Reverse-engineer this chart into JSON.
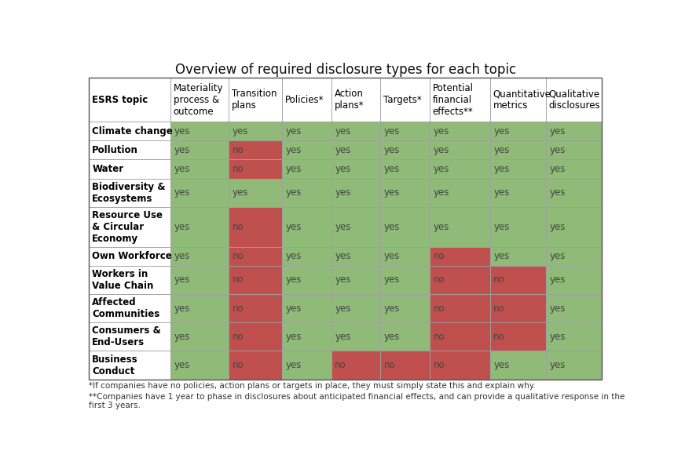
{
  "title": "Overview of required disclosure types for each topic",
  "col_headers": [
    "ESRS topic",
    "Materiality\nprocess &\noutcome",
    "Transition\nplans",
    "Policies*",
    "Action\nplans*",
    "Targets*",
    "Potential\nfinancial\neffects**",
    "Quantitative\nmetrics",
    "Qualitative\ndisclosures"
  ],
  "row_labels": [
    "Climate change",
    "Pollution",
    "Water",
    "Biodiversity &\nEcosystems",
    "Resource Use\n& Circular\nEconomy",
    "Own Workforce",
    "Workers in\nValue Chain",
    "Affected\nCommunities",
    "Consumers &\nEnd-Users",
    "Business\nConduct"
  ],
  "cell_values": [
    [
      "yes",
      "yes",
      "yes",
      "yes",
      "yes",
      "yes",
      "yes",
      "yes"
    ],
    [
      "yes",
      "no",
      "yes",
      "yes",
      "yes",
      "yes",
      "yes",
      "yes"
    ],
    [
      "yes",
      "no",
      "yes",
      "yes",
      "yes",
      "yes",
      "yes",
      "yes"
    ],
    [
      "yes",
      "yes",
      "yes",
      "yes",
      "yes",
      "yes",
      "yes",
      "yes"
    ],
    [
      "yes",
      "no",
      "yes",
      "yes",
      "yes",
      "yes",
      "yes",
      "yes"
    ],
    [
      "yes",
      "no",
      "yes",
      "yes",
      "yes",
      "no",
      "yes",
      "yes"
    ],
    [
      "yes",
      "no",
      "yes",
      "yes",
      "yes",
      "no",
      "no",
      "yes"
    ],
    [
      "yes",
      "no",
      "yes",
      "yes",
      "yes",
      "no",
      "no",
      "yes"
    ],
    [
      "yes",
      "no",
      "yes",
      "yes",
      "yes",
      "no",
      "no",
      "yes"
    ],
    [
      "yes",
      "no",
      "yes",
      "no",
      "no",
      "no",
      "yes",
      "yes"
    ]
  ],
  "yes_color": "#8fba78",
  "no_color": "#c0504d",
  "white_bg": "#ffffff",
  "border_color": "#a0a0a0",
  "header_text_color": "#000000",
  "cell_text_color": "#444444",
  "row_label_text_color": "#000000",
  "title_fontsize": 12,
  "cell_fontsize": 8.5,
  "header_fontsize": 8.5,
  "row_label_fontsize": 8.5,
  "footnote1": "*If companies have no policies, action plans or targets in place, they must simply state this and explain why.",
  "footnote2": "**Companies have 1 year to phase in disclosures about anticipated financial effects, and can provide a qualitative response in the\nfirst 3 years.",
  "col_widths_raw": [
    1.45,
    1.05,
    0.95,
    0.88,
    0.88,
    0.88,
    1.08,
    1.0,
    1.0
  ],
  "row_heights_raw": [
    2.3,
    1.0,
    1.0,
    1.0,
    1.5,
    2.1,
    1.0,
    1.5,
    1.5,
    1.5,
    1.5
  ]
}
